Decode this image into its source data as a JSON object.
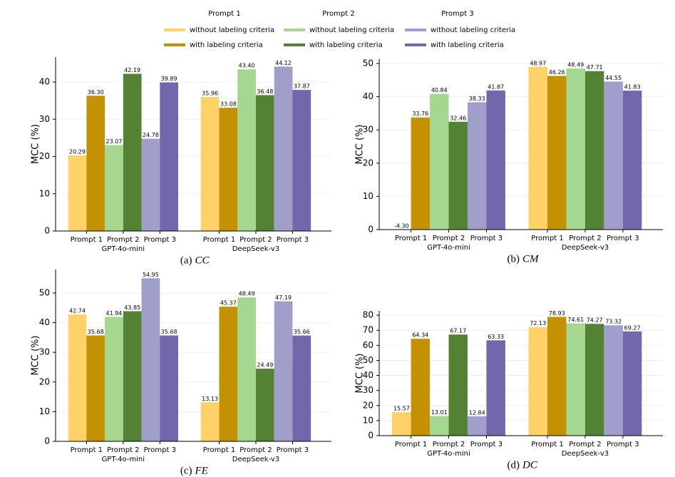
{
  "legend": [
    {
      "title": "Prompt 1",
      "items": [
        {
          "name": "without labeling criteria",
          "color": "#fdd068"
        },
        {
          "name": "with labeling criteria",
          "color": "#c49102"
        }
      ]
    },
    {
      "title": "Prompt 2",
      "items": [
        {
          "name": "without labeling criteria",
          "color": "#a6d78e"
        },
        {
          "name": "with labeling criteria",
          "color": "#548235"
        }
      ]
    },
    {
      "title": "Prompt 3",
      "items": [
        {
          "name": "without labeling criteria",
          "color": "#a09ecb"
        },
        {
          "name": "with labeling criteria",
          "color": "#7266ad"
        }
      ]
    }
  ],
  "chart_data": [
    {
      "type": "grouped_bar",
      "caption": {
        "label": "(a)",
        "name": "CC"
      },
      "ylabel": "MCC (%)",
      "categories": [
        "GPT-4o-mini",
        "DeepSeek-v3"
      ],
      "subcategories": [
        "Prompt 1",
        "Prompt 2",
        "Prompt 3"
      ],
      "values": [
        [
          [
            20.29,
            36.3
          ],
          [
            23.07,
            42.19
          ],
          [
            24.78,
            39.89
          ]
        ],
        [
          [
            35.96,
            33.08
          ],
          [
            43.4,
            36.48
          ],
          [
            44.12,
            37.87
          ]
        ]
      ],
      "value_labels": [
        [
          [
            "20.29",
            "36.30"
          ],
          [
            "23.07",
            "42.19"
          ],
          [
            "24.78",
            "39.89"
          ]
        ],
        [
          [
            "35.96",
            "33.08"
          ],
          [
            "43.40",
            "36.48"
          ],
          [
            "44.12",
            "37.87"
          ]
        ]
      ],
      "ylim": [
        0,
        46.7
      ],
      "yticks": [
        0,
        10,
        20,
        30,
        40
      ],
      "grid": true
    },
    {
      "type": "grouped_bar",
      "caption": {
        "label": "(b)",
        "name": "CM"
      },
      "ylabel": "MCC (%)",
      "categories": [
        "GPT-4o-mini",
        "DeepSeek-v3"
      ],
      "subcategories": [
        "Prompt 1",
        "Prompt 2",
        "Prompt 3"
      ],
      "values": [
        [
          [
            -4.3,
            33.76
          ],
          [
            40.84,
            32.46
          ],
          [
            38.33,
            41.87
          ]
        ],
        [
          [
            48.97,
            46.26
          ],
          [
            48.49,
            47.71
          ],
          [
            44.55,
            41.83
          ]
        ]
      ],
      "value_labels": [
        [
          [
            "-4.30",
            "33.76"
          ],
          [
            "40.84",
            "32.46"
          ],
          [
            "38.33",
            "41.87"
          ]
        ],
        [
          [
            "48.97",
            "46.26"
          ],
          [
            "48.49",
            "47.71"
          ],
          [
            "44.55",
            "41.83"
          ]
        ]
      ],
      "ylim": [
        0,
        51.3
      ],
      "yticks": [
        0,
        10,
        20,
        30,
        40,
        50
      ],
      "grid": true
    },
    {
      "type": "grouped_bar",
      "caption": {
        "label": "(c)",
        "name": "FE"
      },
      "ylabel": "MCC (%)",
      "categories": [
        "GPT-4o-mini",
        "DeepSeek-v3"
      ],
      "subcategories": [
        "Prompt 1",
        "Prompt 2",
        "Prompt 3"
      ],
      "values": [
        [
          [
            42.74,
            35.68
          ],
          [
            41.94,
            43.85
          ],
          [
            54.95,
            35.68
          ]
        ],
        [
          [
            13.13,
            45.37
          ],
          [
            48.49,
            24.49
          ],
          [
            47.19,
            35.66
          ]
        ]
      ],
      "value_labels": [
        [
          [
            "42.74",
            "35.68"
          ],
          [
            "41.94",
            "43.85"
          ],
          [
            "54.95",
            "35.68"
          ]
        ],
        [
          [
            "13.13",
            "45.37"
          ],
          [
            "48.49",
            "24.49"
          ],
          [
            "47.19",
            "35.66"
          ]
        ]
      ],
      "ylim": [
        0,
        57.9
      ],
      "yticks": [
        0,
        10,
        20,
        30,
        40,
        50
      ],
      "grid": true
    },
    {
      "type": "grouped_bar",
      "caption": {
        "label": "(d)",
        "name": "DC"
      },
      "ylabel": "MCC (%)",
      "categories": [
        "GPT-4o-mini",
        "DeepSeek-v3"
      ],
      "subcategories": [
        "Prompt 1",
        "Prompt 2",
        "Prompt 3"
      ],
      "values": [
        [
          [
            15.57,
            64.34
          ],
          [
            13.01,
            67.17
          ],
          [
            12.84,
            63.33
          ]
        ],
        [
          [
            72.13,
            78.93
          ],
          [
            74.61,
            74.27
          ],
          [
            73.32,
            69.27
          ]
        ]
      ],
      "value_labels": [
        [
          [
            "15.57",
            "64.34"
          ],
          [
            "13.01",
            "67.17"
          ],
          [
            "12.84",
            "63.33"
          ]
        ],
        [
          [
            "72.13",
            "78.93"
          ],
          [
            "74.61",
            "74.27"
          ],
          [
            "73.32",
            "69.27"
          ]
        ]
      ],
      "ylim": [
        0,
        82.9
      ],
      "yticks": [
        0,
        10,
        20,
        30,
        40,
        50,
        60,
        70,
        80
      ],
      "grid": true
    }
  ]
}
